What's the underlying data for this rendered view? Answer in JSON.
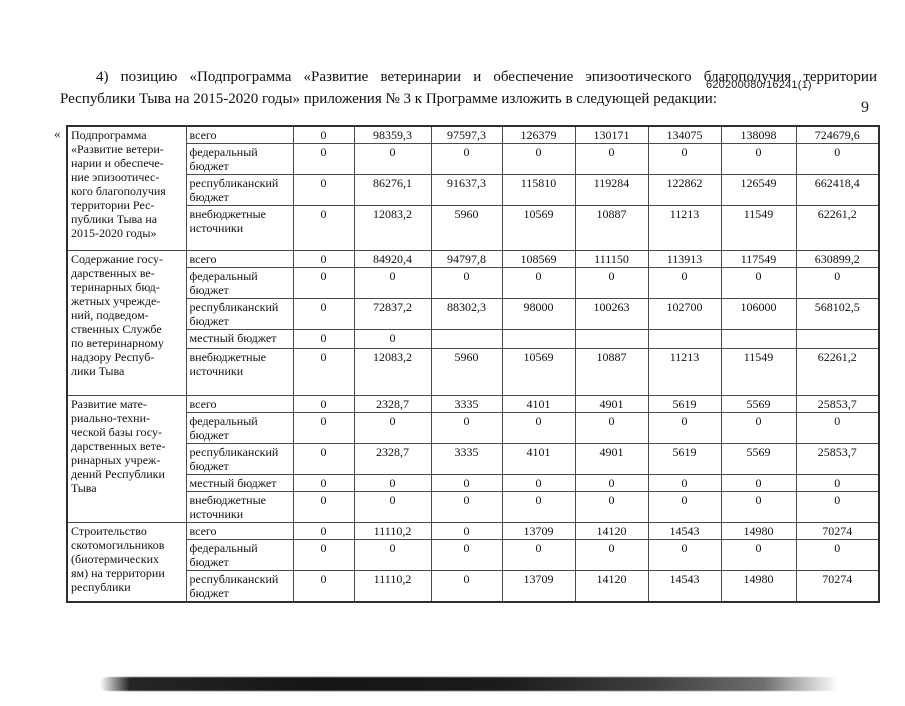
{
  "page": {
    "doc_number": "620200080/16241(1)",
    "page_number": "9",
    "intro_paragraph": "4) позицию «Подпрограмма «Развитие ветеринарии и обеспечение эпизоотического благополучия территории Республики Тыва на 2015-2020 годы» приложения № 3 к Программе изложить в следующей редакции:",
    "opening_quote": "«"
  },
  "table": {
    "groups": [
      {
        "name": [
          "Подпрограмма",
          "«Развитие ветери-",
          "нарии и обеспече-",
          "ние эпизоотичес-",
          "кого благополучия",
          "территории Рес-",
          "публики Тыва на",
          "2015-2020 годы»"
        ],
        "rows": [
          {
            "label": "всего",
            "values": [
              "0",
              "98359,3",
              "97597,3",
              "126379",
              "130171",
              "134075",
              "138098",
              "724679,6"
            ]
          },
          {
            "label": "федеральный бюджет",
            "values": [
              "0",
              "0",
              "0",
              "0",
              "0",
              "0",
              "0",
              "0"
            ]
          },
          {
            "label": "республиканский бюджет",
            "values": [
              "0",
              "86276,1",
              "91637,3",
              "115810",
              "119284",
              "122862",
              "126549",
              "662418,4"
            ]
          },
          {
            "label": "внебюджетные источники",
            "values": [
              "0",
              "12083,2",
              "5960",
              "10569",
              "10887",
              "11213",
              "11549",
              "62261,2"
            ]
          }
        ]
      },
      {
        "name": [
          "Содержание госу-",
          "дарственных ве-",
          "теринарных бюд-",
          "жетных учрежде-",
          "ний, подведом-",
          "ственных Службе",
          "по ветеринарному",
          "надзору Респуб-",
          "лики Тыва"
        ],
        "rows": [
          {
            "label": "всего",
            "values": [
              "0",
              "84920,4",
              "94797,8",
              "108569",
              "111150",
              "113913",
              "117549",
              "630899,2"
            ]
          },
          {
            "label": "федеральный бюджет",
            "values": [
              "0",
              "0",
              "0",
              "0",
              "0",
              "0",
              "0",
              "0"
            ]
          },
          {
            "label": "республиканский бюджет",
            "values": [
              "0",
              "72837,2",
              "88302,3",
              "98000",
              "100263",
              "102700",
              "106000",
              "568102,5"
            ]
          },
          {
            "label": "местный бюджет",
            "values": [
              "0",
              "0",
              "",
              "",
              "",
              "",
              "",
              ""
            ]
          },
          {
            "label": "внебюджетные источники",
            "values": [
              "0",
              "12083,2",
              "5960",
              "10569",
              "10887",
              "11213",
              "11549",
              "62261,2"
            ]
          }
        ]
      },
      {
        "name": [
          "Развитие мате-",
          "риально-техни-",
          "ческой базы госу-",
          "дарственных вете-",
          "ринарных учреж-",
          "дений Республики",
          "Тыва"
        ],
        "rows": [
          {
            "label": "всего",
            "values": [
              "0",
              "2328,7",
              "3335",
              "4101",
              "4901",
              "5619",
              "5569",
              "25853,7"
            ]
          },
          {
            "label": "федеральный бюджет",
            "values": [
              "0",
              "0",
              "0",
              "0",
              "0",
              "0",
              "0",
              "0"
            ]
          },
          {
            "label": "республиканский бюджет",
            "values": [
              "0",
              "2328,7",
              "3335",
              "4101",
              "4901",
              "5619",
              "5569",
              "25853,7"
            ]
          },
          {
            "label": "местный бюджет",
            "values": [
              "0",
              "0",
              "0",
              "0",
              "0",
              "0",
              "0",
              "0"
            ]
          },
          {
            "label": "внебюджетные источники",
            "values": [
              "0",
              "0",
              "0",
              "0",
              "0",
              "0",
              "0",
              "0"
            ]
          }
        ]
      },
      {
        "name": [
          "Строительство",
          "скотомогильников",
          "(биотермических",
          "ям) на территории",
          "республики"
        ],
        "rows": [
          {
            "label": "всего",
            "values": [
              "0",
              "11110,2",
              "0",
              "13709",
              "14120",
              "14543",
              "14980",
              "70274"
            ]
          },
          {
            "label": "федеральный бюджет",
            "values": [
              "0",
              "0",
              "0",
              "0",
              "0",
              "0",
              "0",
              "0"
            ]
          },
          {
            "label": "республиканский бюджет",
            "values": [
              "0",
              "11110,2",
              "0",
              "13709",
              "14120",
              "14543",
              "14980",
              "70274"
            ]
          }
        ]
      }
    ]
  }
}
